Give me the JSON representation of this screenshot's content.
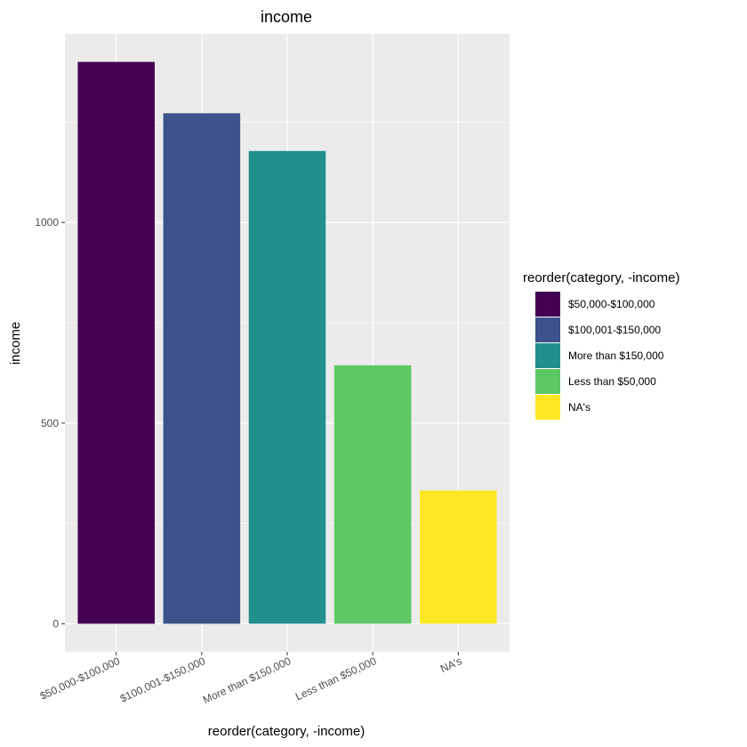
{
  "chart_data": {
    "type": "bar",
    "title": "income",
    "xlabel": "reorder(category, -income)",
    "ylabel": "income",
    "categories": [
      "$50,000-$100,000",
      "$100,001-$150,000",
      "More than $150,000",
      "Less than $50,000",
      "NA's"
    ],
    "values": [
      1400,
      1272,
      1178,
      644,
      332
    ],
    "colors": [
      "#440154",
      "#3B528B",
      "#21908C",
      "#5DC863",
      "#FDE725"
    ],
    "ylim": [
      -70,
      1470
    ],
    "yticks": [
      0,
      500,
      1000
    ],
    "ytick_labels": [
      "0",
      "500",
      "1000"
    ],
    "grid": true,
    "legend": {
      "title": "reorder(category, -income)",
      "position": "right",
      "items": [
        "$50,000-$100,000",
        "$100,001-$150,000",
        "More than $150,000",
        "Less than $50,000",
        "NA's"
      ]
    }
  }
}
